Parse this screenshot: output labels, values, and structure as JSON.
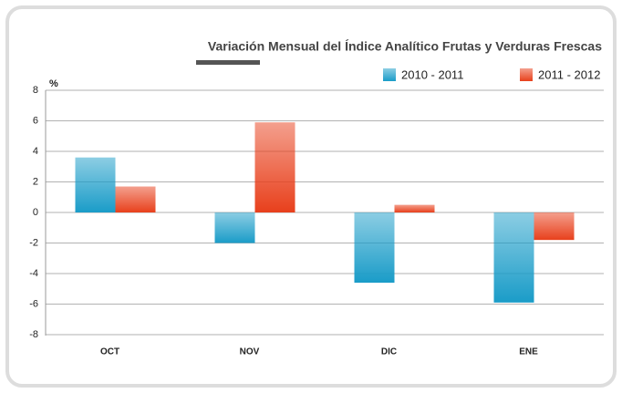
{
  "chart_data": {
    "type": "bar",
    "title": "Variación Mensual del Índice Analítico Frutas y Verduras Frescas",
    "ylabel": "%",
    "categories": [
      "OCT",
      "NOV",
      "DIC",
      "ENE"
    ],
    "series": [
      {
        "name": "2010 - 2011",
        "color": "#1a9cc8",
        "values": [
          3.6,
          -2.0,
          -4.6,
          -5.9
        ]
      },
      {
        "name": "2011 - 2012",
        "color": "#e8401c",
        "values": [
          1.7,
          5.9,
          0.5,
          -1.8
        ]
      }
    ],
    "ylim": [
      -8,
      8
    ],
    "yticks": [
      -8,
      -6,
      -4,
      -2,
      0,
      2,
      4,
      6,
      8
    ],
    "grid": true,
    "legend": "top-right"
  }
}
